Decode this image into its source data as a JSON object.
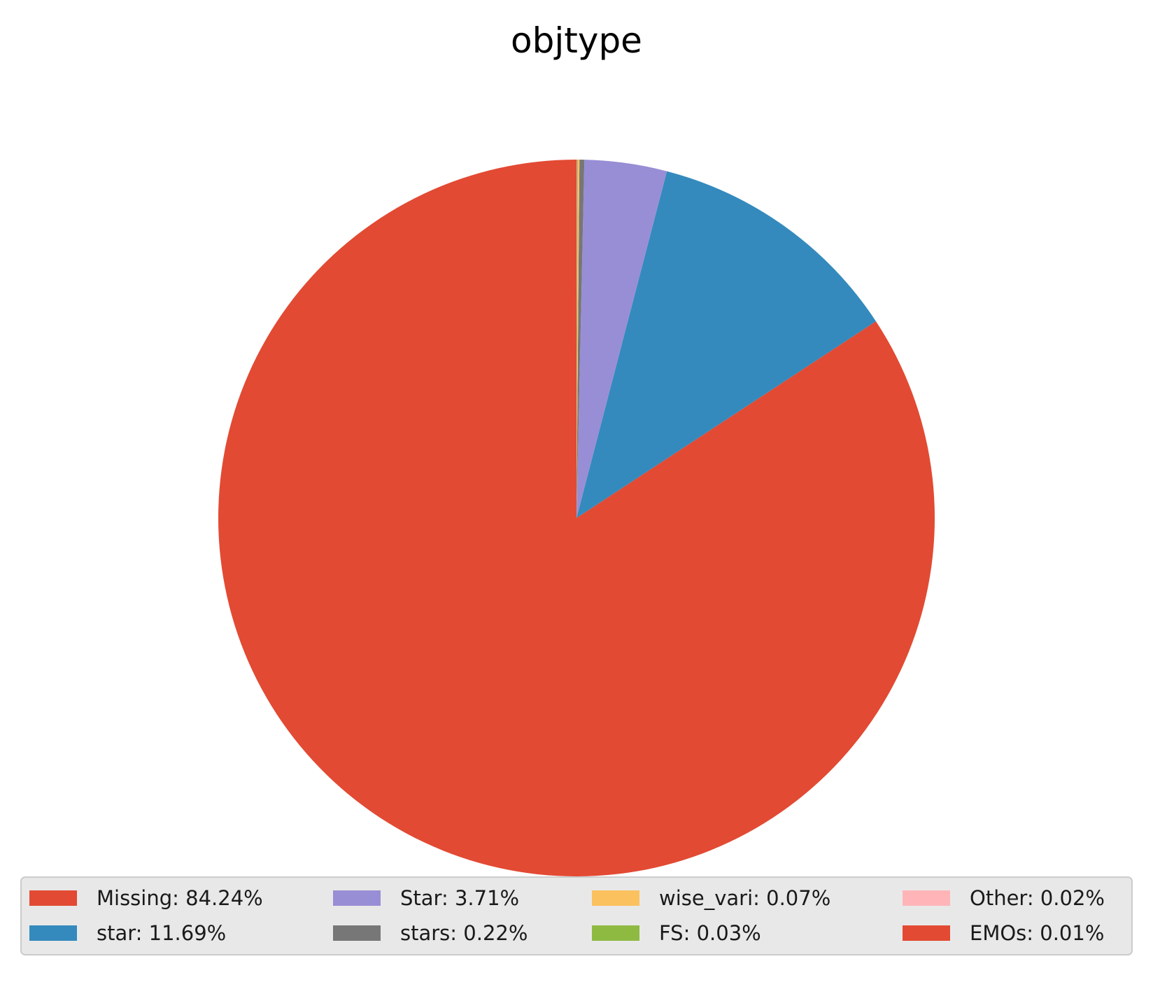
{
  "chart_data": {
    "type": "pie",
    "title": "objtype",
    "start_angle_deg": 90,
    "direction": "counterclockwise",
    "legend_position": "bottom",
    "legend_columns": 4,
    "legend_background": "#e8e8e8",
    "slices": [
      {
        "label": "Missing: 84.24%",
        "name": "Missing",
        "value": 84.24,
        "color": "#e24a33"
      },
      {
        "label": "star: 11.69%",
        "name": "star",
        "value": 11.69,
        "color": "#348abd"
      },
      {
        "label": "Star: 3.71%",
        "name": "Star",
        "value": 3.71,
        "color": "#988ed5"
      },
      {
        "label": "stars: 0.22%",
        "name": "stars",
        "value": 0.22,
        "color": "#777777"
      },
      {
        "label": "wise_vari: 0.07%",
        "name": "wise_vari",
        "value": 0.07,
        "color": "#fbc15e"
      },
      {
        "label": "FS: 0.03%",
        "name": "FS",
        "value": 0.03,
        "color": "#8eba42"
      },
      {
        "label": "Other: 0.02%",
        "name": "Other",
        "value": 0.02,
        "color": "#ffb5b8"
      },
      {
        "label": "EMOs: 0.01%",
        "name": "EMOs",
        "value": 0.01,
        "color": "#e24a33"
      }
    ]
  }
}
